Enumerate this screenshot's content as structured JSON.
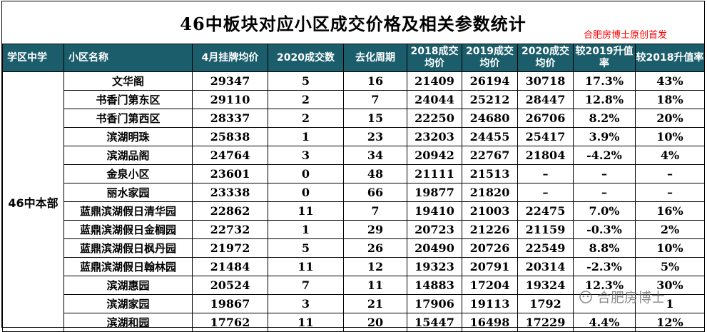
{
  "title": "46中板块对应小区成交价格及相关参数统计",
  "source_note": "合肥房博士原创首发",
  "watermark": "合肥房博士",
  "colors": {
    "header_bg": "#1b5d6b",
    "header_text": "#ffffff",
    "note": "#ff0000"
  },
  "columns": [
    "学区中学",
    "小区名称",
    "4月挂牌均价",
    "2020成交数",
    "去化周期",
    "2018成交均价",
    "2019成交均价",
    "2020成交均价",
    "较2019升值率",
    "较2018升值率"
  ],
  "school": "46中本部",
  "rows": [
    [
      "文华阁",
      "29347",
      "5",
      "16",
      "21409",
      "26194",
      "30718",
      "17.3%",
      "43%"
    ],
    [
      "书香门第东区",
      "29110",
      "2",
      "7",
      "24044",
      "25212",
      "28447",
      "12.8%",
      "18%"
    ],
    [
      "书香门第西区",
      "28337",
      "2",
      "15",
      "22250",
      "24680",
      "26706",
      "8.2%",
      "20%"
    ],
    [
      "滨湖明珠",
      "25838",
      "1",
      "23",
      "23203",
      "24455",
      "25417",
      "3.9%",
      "10%"
    ],
    [
      "滨湖品阁",
      "24764",
      "3",
      "34",
      "20942",
      "22767",
      "21804",
      "-4.2%",
      "4%"
    ],
    [
      "金泉小区",
      "23601",
      "0",
      "48",
      "21111",
      "21513",
      "–",
      "–",
      "–"
    ],
    [
      "丽水家园",
      "23338",
      "0",
      "66",
      "19877",
      "21820",
      "–",
      "–",
      "–"
    ],
    [
      "蓝鼎滨湖假日清华园",
      "22862",
      "11",
      "7",
      "19410",
      "21003",
      "22475",
      "7.0%",
      "16%"
    ],
    [
      "蓝鼎滨湖假日金榈园",
      "22732",
      "1",
      "29",
      "20723",
      "21226",
      "21159",
      "-0.3%",
      "2%"
    ],
    [
      "蓝鼎滨湖假日枫丹园",
      "21972",
      "5",
      "26",
      "20490",
      "20726",
      "22549",
      "8.8%",
      "10%"
    ],
    [
      "蓝鼎滨湖假日翰林园",
      "21484",
      "11",
      "12",
      "19323",
      "20791",
      "20314",
      "-2.3%",
      "5%"
    ],
    [
      "滨湖惠园",
      "20524",
      "7",
      "11",
      "14883",
      "17204",
      "19324",
      "12.3%",
      "30%"
    ],
    [
      "滨湖家园",
      "19867",
      "3",
      "21",
      "17906",
      "19113",
      "1792",
      "",
      "1"
    ],
    [
      "滨湖和园",
      "17762",
      "11",
      "20",
      "15447",
      "16498",
      "17229",
      "4.4%",
      "12%"
    ]
  ]
}
